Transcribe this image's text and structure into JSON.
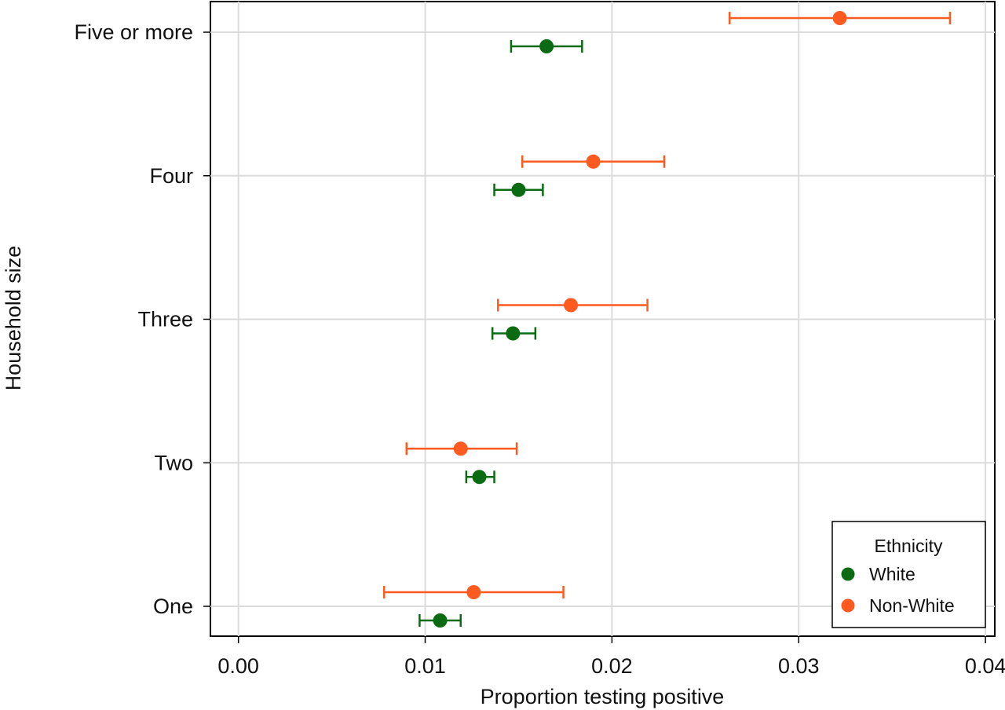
{
  "chart_data": {
    "type": "scatter",
    "title": "",
    "xlabel": "Proportion testing positive",
    "ylabel": "Household size",
    "xlim": [
      -0.0015,
      0.0405
    ],
    "x_ticks": [
      0.0,
      0.01,
      0.02,
      0.03,
      0.04
    ],
    "x_tick_labels": [
      "0.00",
      "0.01",
      "0.02",
      "0.03",
      "0.04"
    ],
    "categories": [
      "One",
      "Two",
      "Three",
      "Four",
      "Five or more"
    ],
    "grid": true,
    "legend": {
      "title": "Ethnicity",
      "position": "bottom-right"
    },
    "series": [
      {
        "name": "White",
        "color": "#0b6b12",
        "estimates": [
          0.0108,
          0.0129,
          0.0147,
          0.015,
          0.0165
        ],
        "ci_low": [
          0.0097,
          0.0122,
          0.0136,
          0.0137,
          0.0146
        ],
        "ci_high": [
          0.0119,
          0.0137,
          0.0159,
          0.0163,
          0.0184
        ]
      },
      {
        "name": "Non-White",
        "color": "#ff5a1f",
        "estimates": [
          0.0126,
          0.0119,
          0.0178,
          0.019,
          0.0322
        ],
        "ci_low": [
          0.0078,
          0.009,
          0.0139,
          0.0152,
          0.0263
        ],
        "ci_high": [
          0.0174,
          0.0149,
          0.0219,
          0.0228,
          0.0381
        ]
      }
    ]
  }
}
